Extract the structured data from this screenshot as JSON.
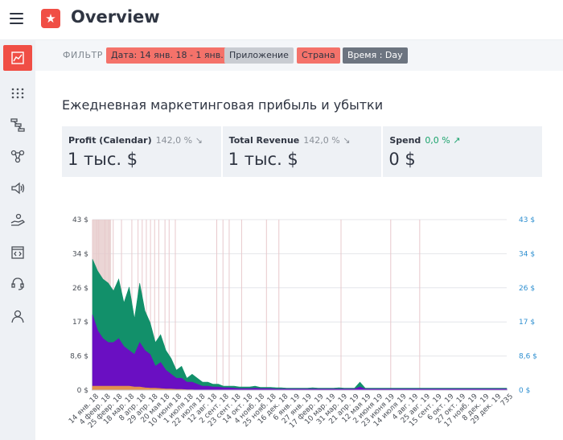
{
  "header": {
    "title": "Overview",
    "logo_icon": "star-icon"
  },
  "sidebar": {
    "items": [
      {
        "name": "chart-icon",
        "active": true
      },
      {
        "name": "dots-grid-icon",
        "active": false
      },
      {
        "name": "flow-icon",
        "active": false
      },
      {
        "name": "nodes-icon",
        "active": false
      },
      {
        "name": "megaphone-icon",
        "active": false
      },
      {
        "name": "hand-money-icon",
        "active": false
      },
      {
        "name": "code-window-icon",
        "active": false
      },
      {
        "name": "support-icon",
        "active": false
      },
      {
        "name": "user-icon",
        "active": false
      }
    ]
  },
  "filters": {
    "label": "ФИЛЬТР",
    "date": "Дата: 14 янв. 18 - 1 янв. 20",
    "app": "Приложение",
    "country": "Страна",
    "time": "Время :  Day"
  },
  "section": {
    "title": "Ежедневная маркетинговая прибыль и убытки"
  },
  "kpis": [
    {
      "name": "Profit (Calendar)",
      "delta": "142,0 %",
      "trend": "down",
      "value": "1 тыс. $"
    },
    {
      "name": "Total Revenue",
      "delta": "142,0 %",
      "trend": "down",
      "value": "1 тыс. $"
    },
    {
      "name": "Spend",
      "delta": "0,0 %",
      "trend": "up",
      "value": "0 $"
    }
  ],
  "colors": {
    "accent": "#f04e45",
    "revenue": "#12906a",
    "profit": "#6a0fc2",
    "spend": "#f0a040",
    "right_axis": "#2e8fd0"
  },
  "chart_data": {
    "type": "area",
    "y_ticks": [
      "43 $",
      "34 $",
      "26 $",
      "17 $",
      "8,6 $",
      "0 $"
    ],
    "y_ticks_right": [
      "43 $",
      "34 $",
      "26 $",
      "17 $",
      "8,6 $",
      "0 $"
    ],
    "ylim": [
      0,
      43
    ],
    "x_tick_labels": [
      "14 янв. 18",
      "4 февр. 18",
      "25 февр. 18",
      "18 мар. 18",
      "8 апр. 18",
      "29 апр. 18",
      "20 мая 18",
      "10 июня 18",
      "1 июля 18",
      "22 июля 18",
      "12 авг. 18",
      "2 сент. 18",
      "23 сент. 18",
      "14 окт. 18",
      "4 нояб. 18",
      "25 нояб. 18",
      "16 дек. 18",
      "6 янв. 19",
      "27 янв. 19",
      "17 февр. 19",
      "10 мар. 19",
      "31 мар. 19",
      "21 апр. 19",
      "12 мая 19",
      "2 июня 19",
      "23 июня 19",
      "14 июля 19",
      "4 авг. 19",
      "25 авг. 19",
      "15 сент. 19",
      "6 окт. 19",
      "27 окт. 19",
      "17 нояб. 19",
      "8 дек. 19",
      "29 дек. 19",
      "735"
    ],
    "series": [
      {
        "key": "revenue",
        "values": [
          33,
          30,
          28,
          27,
          25,
          28,
          22,
          26,
          18,
          27,
          20,
          17,
          12,
          14,
          10,
          8,
          5,
          6,
          3,
          4,
          3,
          2,
          2,
          1.5,
          1.5,
          1,
          1,
          1,
          0.8,
          0.8,
          0.8,
          1,
          0.7,
          0.7,
          0.7,
          0.6,
          0.6,
          0.5,
          0.5,
          0.5,
          0.5,
          0.5,
          0.6,
          0.5,
          0.5,
          0.5,
          0.5,
          0.6,
          0.5,
          0.5,
          0.5,
          2,
          0.5,
          0.5,
          0.5,
          0.5,
          0.5,
          0.5,
          0.5,
          0.5,
          0.5,
          0.5,
          0.5,
          0.5,
          0.5,
          0.5,
          0.5,
          0.5,
          0.5,
          0.5,
          0.5,
          0.5,
          0.5,
          0.5,
          0.5,
          0.5,
          0.5,
          0.5,
          0.5,
          0.5
        ]
      },
      {
        "key": "profit",
        "values": [
          19,
          15,
          13,
          12,
          12,
          13,
          11,
          10,
          9,
          12,
          10,
          9,
          6,
          7,
          5,
          4,
          3,
          3,
          2,
          2,
          1.5,
          1,
          1,
          0.8,
          0.8,
          0.6,
          0.6,
          0.5,
          0.4,
          0.4,
          0.4,
          0.5,
          0.4,
          0.4,
          0.4,
          0.3,
          0.3,
          0.3,
          0.3,
          0.3,
          0.3,
          0.3,
          0.3,
          0.3,
          0.3,
          0.3,
          0.3,
          0.3,
          0.3,
          0.3,
          0.3,
          0.8,
          0.3,
          0.3,
          0.3,
          0.3,
          0.3,
          0.3,
          0.3,
          0.3,
          0.3,
          0.3,
          0.3,
          0.3,
          0.3,
          0.3,
          0.3,
          0.3,
          0.3,
          0.3,
          0.3,
          0.3,
          0.3,
          0.3,
          0.3,
          0.3,
          0.3,
          0.3,
          0.3,
          0.3
        ]
      },
      {
        "key": "spend",
        "values": [
          1,
          1,
          1,
          1,
          1,
          1,
          1,
          1,
          0.8,
          0.8,
          0.6,
          0.5,
          0.5,
          0.4,
          0.3,
          0.3,
          0.2,
          0.2,
          0.1,
          0.1,
          0,
          0,
          0,
          0,
          0,
          0,
          0,
          0,
          0,
          0,
          0,
          0,
          0,
          0,
          0,
          0,
          0,
          0,
          0,
          0,
          0,
          0,
          0,
          0,
          0,
          0,
          0,
          0,
          0,
          0,
          0,
          0,
          0,
          0,
          0,
          0,
          0,
          0,
          0,
          0,
          0,
          0,
          0,
          0,
          0,
          0,
          0,
          0,
          0,
          0,
          0,
          0,
          0,
          0,
          0,
          0,
          0,
          0,
          0,
          0
        ]
      }
    ],
    "grid": true
  }
}
